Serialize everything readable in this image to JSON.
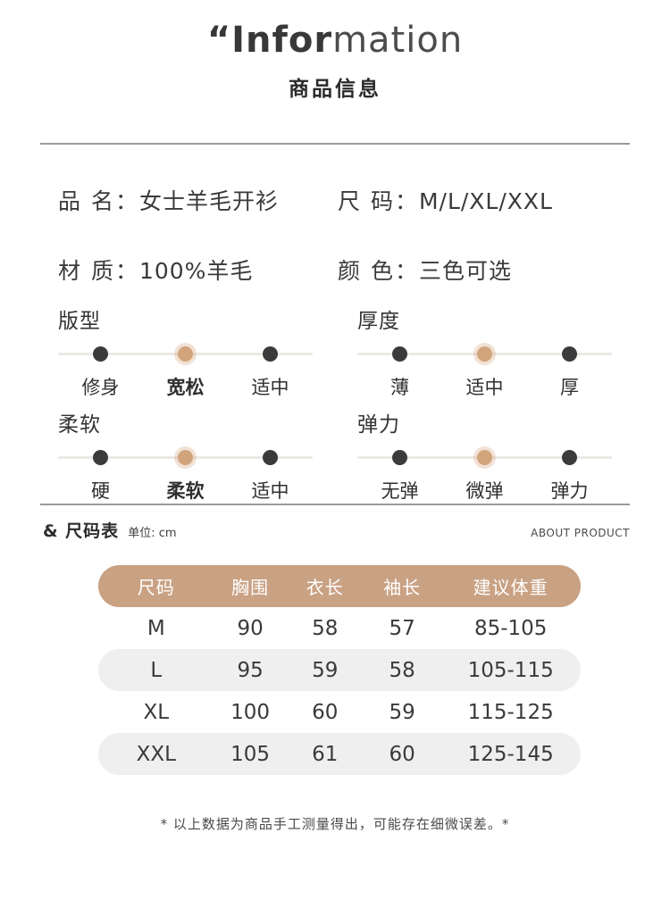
{
  "header": {
    "title_bold": "“Infor",
    "title_light": "mation",
    "subtitle": "商品信息"
  },
  "info": [
    {
      "label": "品 名：",
      "value": "女士羊毛开衫"
    },
    {
      "label": "尺 码：",
      "value": "M/L/XL/XXL"
    },
    {
      "label": "材 质：",
      "value": "100%羊毛"
    },
    {
      "label": "颜 色：",
      "value": "三色可选"
    }
  ],
  "scales": [
    {
      "title": "版型",
      "options": [
        "修身",
        "宽松",
        "适中"
      ],
      "selected": 1,
      "selected_bold": true
    },
    {
      "title": "厚度",
      "options": [
        "薄",
        "适中",
        "厚"
      ],
      "selected": 1,
      "selected_bold": false
    },
    {
      "title": "柔软",
      "options": [
        "硬",
        "柔软",
        "适中"
      ],
      "selected": 1,
      "selected_bold": true
    },
    {
      "title": "弹力",
      "options": [
        "无弹",
        "微弹",
        "弹力"
      ],
      "selected": 1,
      "selected_bold": false
    }
  ],
  "size_chart": {
    "section_title": "& 尺码表",
    "unit_label": "单位: cm",
    "section_tagline": "ABOUT PRODUCT",
    "columns": [
      "尺码",
      "胸围",
      "衣长",
      "袖长",
      "建议体重"
    ],
    "rows": [
      [
        "M",
        "90",
        "58",
        "57",
        "85-105"
      ],
      [
        "L",
        "95",
        "59",
        "58",
        "105-115"
      ],
      [
        "XL",
        "100",
        "60",
        "59",
        "115-125"
      ],
      [
        "XXL",
        "105",
        "61",
        "60",
        "125-145"
      ]
    ]
  },
  "footnote": "* 以上数据为商品手工测量得出，可能存在细微误差。*",
  "colors": {
    "accent": "#c9a183",
    "selected_dot": "#d2a47c",
    "default_dot": "#3b3b3b",
    "alt_row_bg": "#efefef"
  }
}
